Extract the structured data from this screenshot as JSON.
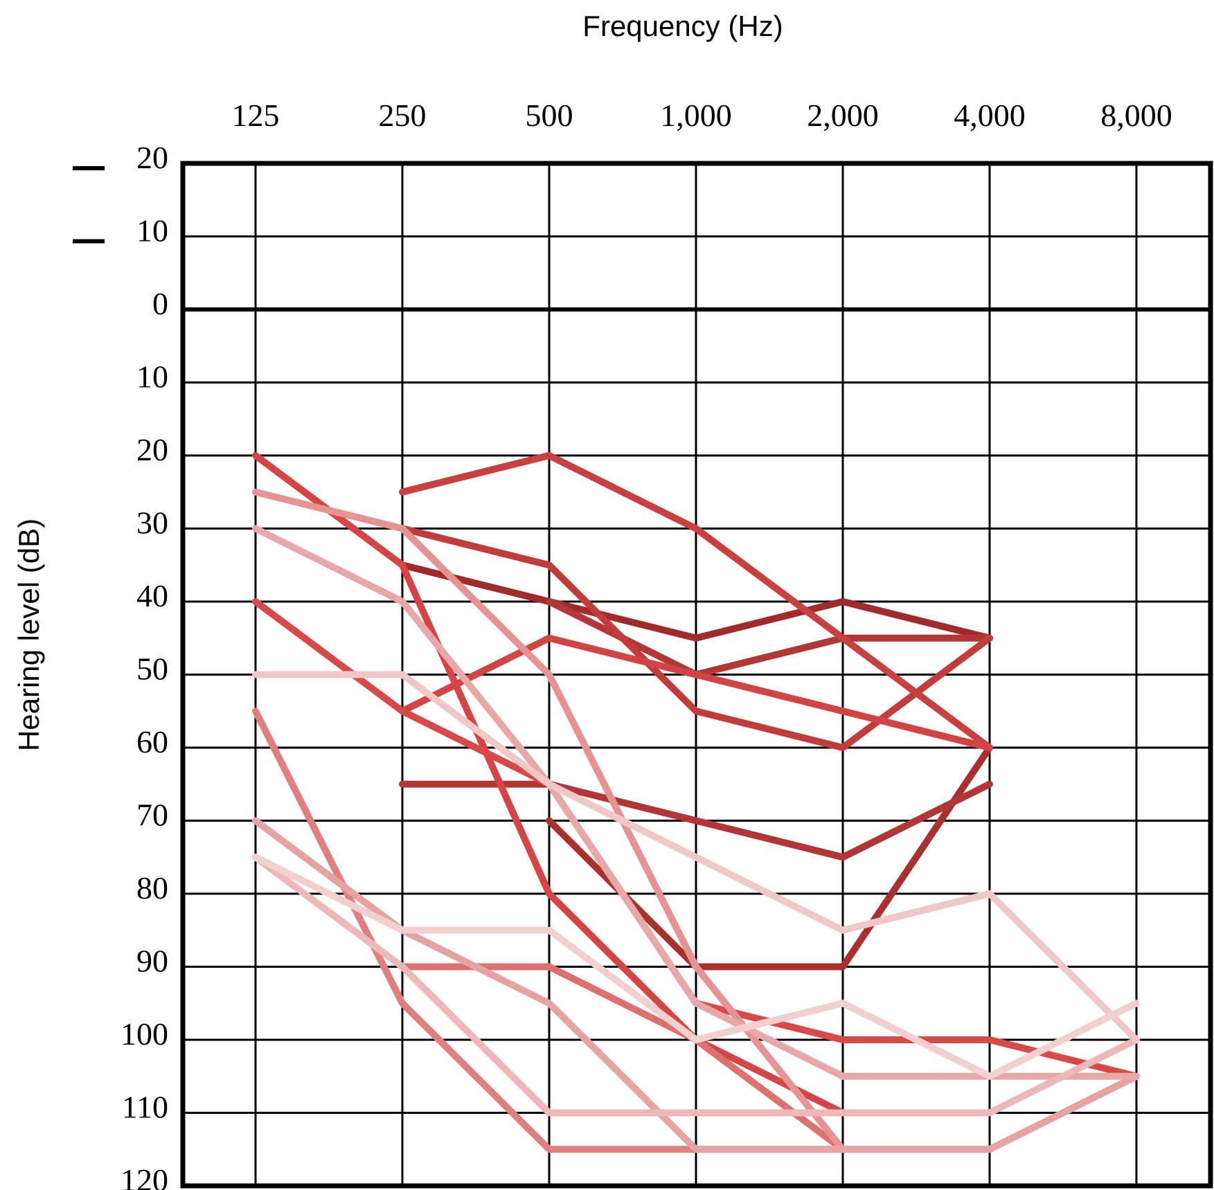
{
  "chart_data": {
    "type": "line",
    "title": "",
    "xlabel": "Frequency (Hz)",
    "ylabel": "Hearing level (dB)",
    "x": [
      125,
      250,
      500,
      1000,
      2000,
      4000,
      8000
    ],
    "x_tick_labels": [
      "125",
      "250",
      "500",
      "1,000",
      "2,000",
      "4,000",
      "8,000"
    ],
    "x_scale": "log2",
    "ylim": [
      -20,
      120
    ],
    "y_inverted": true,
    "y_tick_labels": [
      "20",
      "10",
      "0",
      "10",
      "20",
      "30",
      "40",
      "50",
      "60",
      "70",
      "80",
      "90",
      "100",
      "110",
      "120"
    ],
    "y_tick_values": [
      -20,
      -10,
      0,
      10,
      20,
      30,
      40,
      50,
      60,
      70,
      80,
      90,
      100,
      110,
      120
    ],
    "negative_marks": [
      -20,
      -10
    ],
    "grid": true,
    "legend": "none",
    "series": [
      {
        "color": "#a12a2a",
        "values": [
          null,
          35,
          40,
          45,
          40,
          45,
          null
        ]
      },
      {
        "color": "#a8302f",
        "values": [
          null,
          null,
          70,
          90,
          90,
          60,
          null
        ]
      },
      {
        "color": "#b33536",
        "values": [
          null,
          65,
          65,
          70,
          75,
          65,
          null
        ]
      },
      {
        "color": "#b43738",
        "values": [
          null,
          null,
          40,
          50,
          45,
          45,
          null
        ]
      },
      {
        "color": "#c23c3c",
        "values": [
          null,
          30,
          35,
          55,
          60,
          45,
          null
        ]
      },
      {
        "color": "#c94040",
        "values": [
          null,
          25,
          20,
          30,
          45,
          60,
          null
        ]
      },
      {
        "color": "#d04444",
        "values": [
          null,
          55,
          45,
          50,
          55,
          60,
          null
        ]
      },
      {
        "color": "#d64545",
        "values": [
          20,
          35,
          80,
          100,
          110,
          null,
          null
        ]
      },
      {
        "color": "#d84a4a",
        "values": [
          40,
          55,
          65,
          95,
          100,
          100,
          105
        ]
      },
      {
        "color": "#de7070",
        "values": [
          null,
          90,
          90,
          100,
          115,
          null,
          null
        ]
      },
      {
        "color": "#df7f7f",
        "values": [
          55,
          95,
          115,
          115,
          115,
          115,
          105
        ]
      },
      {
        "color": "#e59393",
        "values": [
          25,
          30,
          50,
          90,
          115,
          null,
          null
        ]
      },
      {
        "color": "#e6a3a3",
        "values": [
          70,
          85,
          95,
          115,
          115,
          115,
          105
        ]
      },
      {
        "color": "#e8a8a8",
        "values": [
          30,
          40,
          65,
          95,
          105,
          105,
          105
        ]
      },
      {
        "color": "#ecb8b8",
        "values": [
          75,
          90,
          110,
          110,
          110,
          110,
          100
        ]
      },
      {
        "color": "#f0c8c8",
        "values": [
          50,
          50,
          65,
          75,
          85,
          80,
          100
        ]
      },
      {
        "color": "#f2d0d0",
        "values": [
          75,
          85,
          85,
          100,
          95,
          105,
          95
        ]
      }
    ]
  }
}
